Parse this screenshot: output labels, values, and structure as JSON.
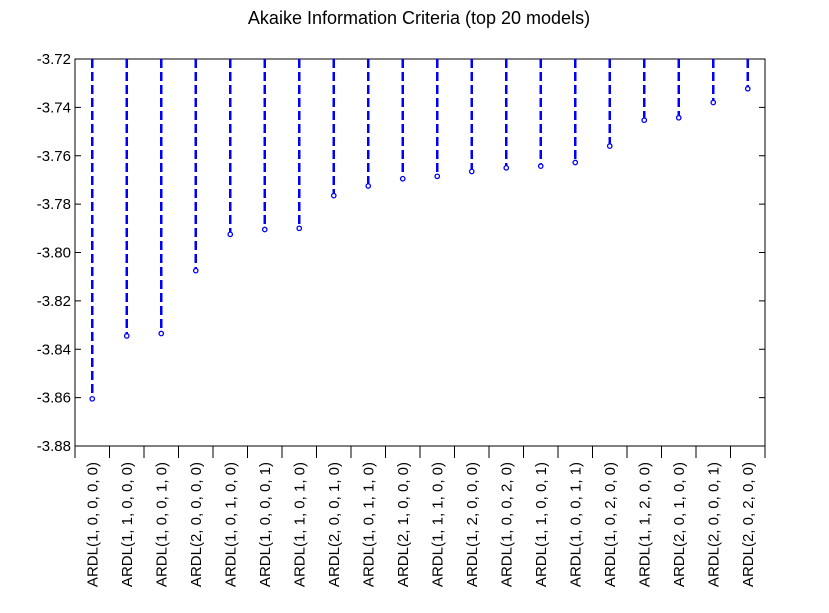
{
  "chart_data": {
    "type": "bar",
    "title": "Akaike Information Criteria (top 20 models)",
    "xlabel": "",
    "ylabel": "",
    "ylim": [
      -3.88,
      -3.72
    ],
    "yticks": [
      -3.72,
      -3.74,
      -3.76,
      -3.78,
      -3.8,
      -3.82,
      -3.84,
      -3.86,
      -3.88
    ],
    "ytick_labels": [
      "-3.72",
      "-3.74",
      "-3.76",
      "-3.78",
      "-3.80",
      "-3.82",
      "-3.84",
      "-3.86",
      "-3.88"
    ],
    "bar_style": "dashed drop-lines from top with circle markers",
    "grid": false,
    "colors": {
      "series": "#0000ff",
      "axis": "#000000"
    },
    "categories": [
      "ARDL(1, 0, 0, 0, 0)",
      "ARDL(1, 1, 0, 0, 0)",
      "ARDL(1, 0, 0, 1, 0)",
      "ARDL(2, 0, 0, 0, 0)",
      "ARDL(1, 0, 1, 0, 0)",
      "ARDL(1, 0, 0, 0, 1)",
      "ARDL(1, 1, 0, 1, 0)",
      "ARDL(2, 0, 0, 1, 0)",
      "ARDL(1, 0, 1, 1, 0)",
      "ARDL(2, 1, 0, 0, 0)",
      "ARDL(1, 1, 1, 0, 0)",
      "ARDL(1, 2, 0, 0, 0)",
      "ARDL(1, 0, 0, 2, 0)",
      "ARDL(1, 1, 0, 0, 1)",
      "ARDL(1, 0, 0, 1, 1)",
      "ARDL(1, 0, 2, 0, 0)",
      "ARDL(1, 1, 2, 0, 0)",
      "ARDL(2, 0, 1, 0, 0)",
      "ARDL(2, 0, 0, 0, 1)",
      "ARDL(2, 0, 2, 0, 0)"
    ],
    "values": [
      -3.8605,
      -3.8345,
      -3.8335,
      -3.8075,
      -3.7925,
      -3.7905,
      -3.79,
      -3.7765,
      -3.7725,
      -3.7695,
      -3.7685,
      -3.7665,
      -3.765,
      -3.7643,
      -3.7628,
      -3.756,
      -3.7453,
      -3.7443,
      -3.738,
      -3.7323
    ]
  }
}
